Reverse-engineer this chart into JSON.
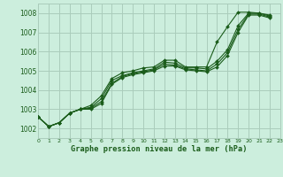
{
  "title": "Graphe pression niveau de la mer (hPa)",
  "background_color": "#cceedd",
  "grid_color": "#aaccbb",
  "line_color": "#1a5c1a",
  "marker_color": "#1a5c1a",
  "xlim": [
    0,
    23
  ],
  "ylim": [
    1001.5,
    1008.5
  ],
  "xticks": [
    0,
    1,
    2,
    3,
    4,
    5,
    6,
    7,
    8,
    9,
    10,
    11,
    12,
    13,
    14,
    15,
    16,
    17,
    18,
    19,
    20,
    21,
    22,
    23
  ],
  "yticks": [
    1002,
    1003,
    1004,
    1005,
    1006,
    1007,
    1008
  ],
  "series": [
    {
      "x": [
        0,
        1,
        2,
        3,
        4,
        5,
        6,
        7,
        8,
        9,
        10,
        11,
        12,
        13,
        14,
        15,
        16,
        17,
        18,
        19,
        20,
        21,
        22
      ],
      "y": [
        1002.6,
        1002.1,
        1002.3,
        1002.8,
        1003.0,
        1003.2,
        1003.7,
        1004.6,
        1004.9,
        1005.0,
        1005.15,
        1005.2,
        1005.55,
        1005.55,
        1005.2,
        1005.2,
        1005.2,
        1006.5,
        1007.3,
        1008.05,
        1008.05,
        1008.0,
        1007.9
      ]
    },
    {
      "x": [
        0,
        1,
        2,
        3,
        4,
        5,
        6,
        7,
        8,
        9,
        10,
        11,
        12,
        13,
        14,
        15,
        16,
        17,
        18,
        19,
        20,
        21,
        22
      ],
      "y": [
        1002.6,
        1002.1,
        1002.3,
        1002.8,
        1003.0,
        1003.1,
        1003.55,
        1004.5,
        1004.75,
        1004.9,
        1005.0,
        1005.1,
        1005.45,
        1005.4,
        1005.15,
        1005.15,
        1005.1,
        1005.5,
        1006.1,
        1007.35,
        1008.0,
        1008.0,
        1007.85
      ]
    },
    {
      "x": [
        0,
        1,
        2,
        3,
        4,
        5,
        6,
        7,
        8,
        9,
        10,
        11,
        12,
        13,
        14,
        15,
        16,
        17,
        18,
        19,
        20,
        21,
        22
      ],
      "y": [
        1002.6,
        1002.1,
        1002.3,
        1002.8,
        1003.0,
        1003.05,
        1003.4,
        1004.35,
        1004.7,
        1004.85,
        1004.95,
        1005.05,
        1005.35,
        1005.3,
        1005.1,
        1005.05,
        1005.0,
        1005.35,
        1005.95,
        1007.15,
        1007.95,
        1007.95,
        1007.8
      ]
    },
    {
      "x": [
        0,
        1,
        2,
        3,
        4,
        5,
        6,
        7,
        8,
        9,
        10,
        11,
        12,
        13,
        14,
        15,
        16,
        17,
        18,
        19,
        20,
        21,
        22
      ],
      "y": [
        1002.6,
        1002.1,
        1002.3,
        1002.8,
        1003.0,
        1003.0,
        1003.3,
        1004.3,
        1004.65,
        1004.8,
        1004.9,
        1005.0,
        1005.25,
        1005.25,
        1005.05,
        1005.0,
        1004.95,
        1005.2,
        1005.8,
        1007.0,
        1007.9,
        1007.9,
        1007.75
      ]
    }
  ]
}
